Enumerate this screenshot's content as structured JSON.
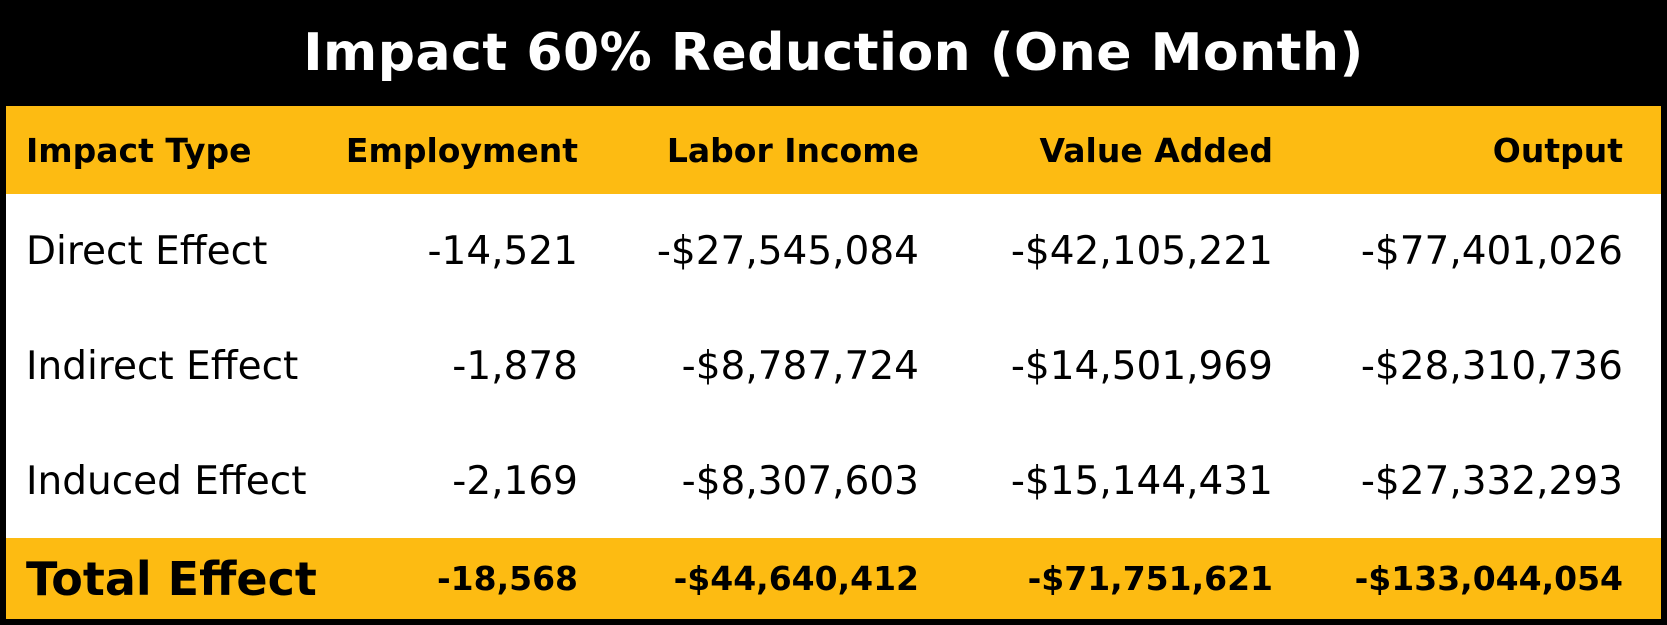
{
  "title": "Impact 60% Reduction (One Month)",
  "columns": [
    "Impact Type",
    "Employment",
    "Labor Income",
    "Value Added",
    "Output"
  ],
  "rows": [
    [
      "Direct Effect",
      "-14,521",
      "-$27,545,084",
      "-$42,105,221",
      "-$77,401,026"
    ],
    [
      "Indirect Effect",
      "-1,878",
      "-$8,787,724",
      "-$14,501,969",
      "-$28,310,736"
    ],
    [
      "Induced Effect",
      "-2,169",
      "-$8,307,603",
      "-$15,144,431",
      "-$27,332,293"
    ]
  ],
  "total": [
    "Total Effect",
    "-18,568",
    "-$44,640,412",
    "-$71,751,621",
    "-$133,044,054"
  ],
  "colors": {
    "title_background": "#000000",
    "title_text": "#FFFFFF",
    "header_background": "#FDBB12",
    "body_background": "#FFFFFF",
    "total_background": "#FDBB12",
    "border": "#000000"
  }
}
